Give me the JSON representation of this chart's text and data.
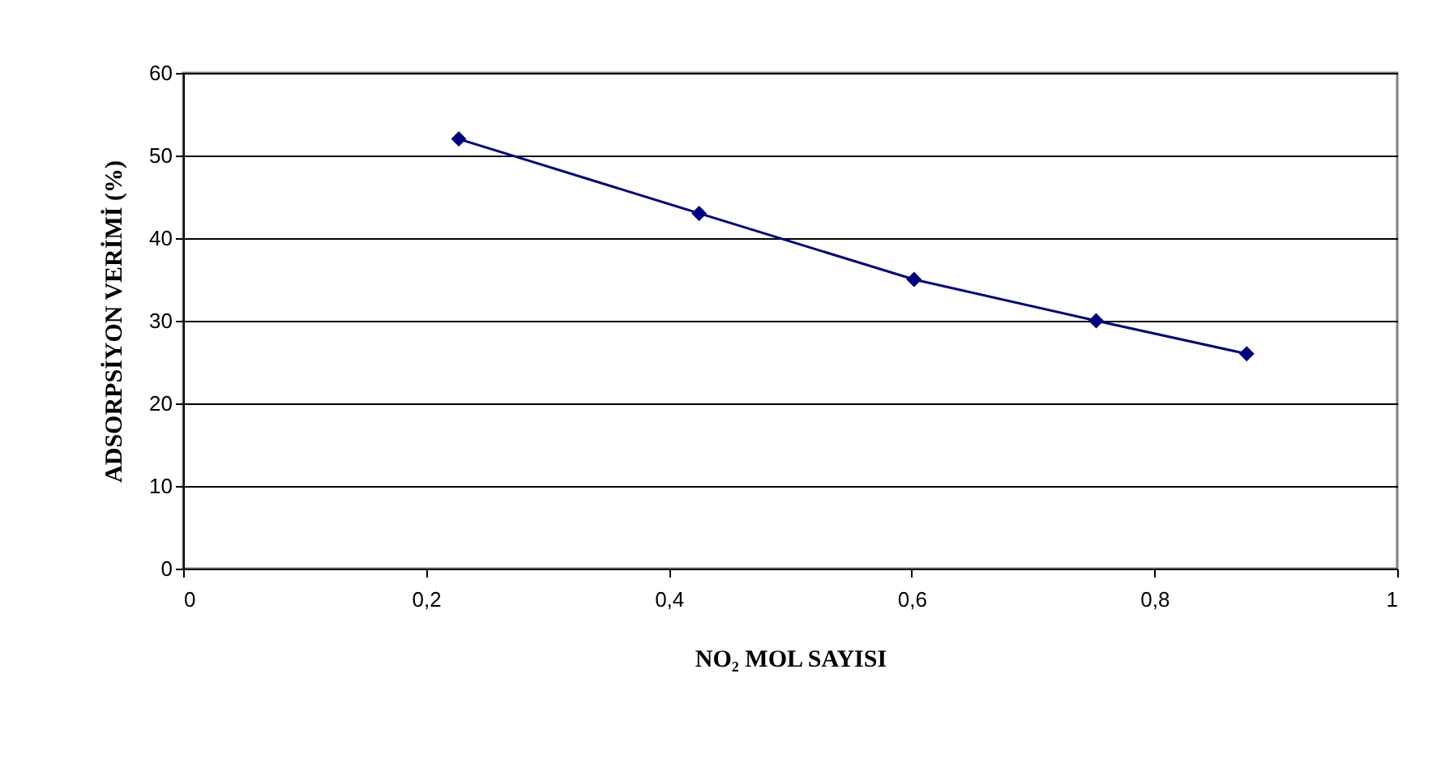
{
  "chart_data": {
    "type": "line",
    "xlabel": "NO₂ MOL SAYISI",
    "ylabel": "ADSORPSİYON VERİMİ (%)",
    "x": [
      0.227,
      0.425,
      0.602,
      0.752,
      0.876
    ],
    "series": [
      {
        "color": "#000080",
        "values": [
          52,
          43,
          35,
          30,
          26
        ]
      }
    ],
    "xlim": [
      0,
      1
    ],
    "xticks": [
      0,
      {
        "value": 0.2,
        "label": "0,2"
      },
      {
        "value": 0.4,
        "label": "0,4"
      },
      {
        "value": 0.6,
        "label": "0,6"
      },
      {
        "value": 0.8,
        "label": "0,8"
      },
      1
    ],
    "ylim": [
      0,
      60
    ],
    "yticks": [
      0,
      10,
      20,
      30,
      40,
      50,
      60
    ],
    "grid": "y",
    "marker": "diamond",
    "line_style": "solid"
  }
}
